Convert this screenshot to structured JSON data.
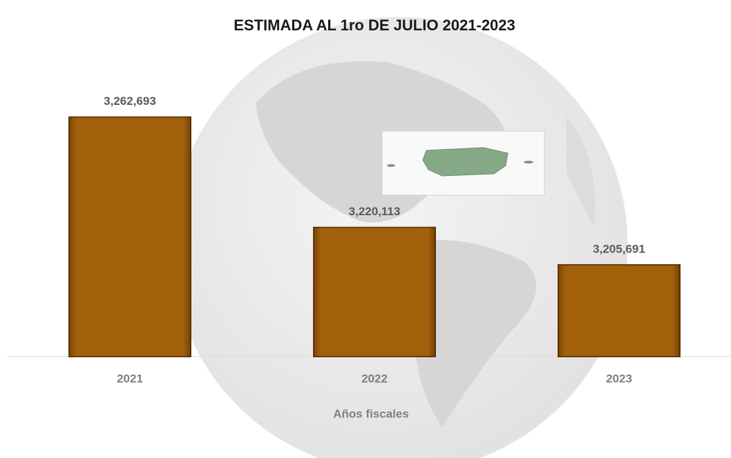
{
  "chart_data": {
    "type": "bar",
    "title": "ESTIMADA AL 1ro DE JULIO 2021-2023",
    "x_label": "Años fiscales",
    "categories": [
      "2021",
      "2022",
      "2023"
    ],
    "values": [
      3262693,
      3220113,
      3205691
    ],
    "value_labels": [
      "3,262,693",
      "3,220,113",
      "3,205,691"
    ],
    "color": "#a3600b",
    "ylim": [
      3170300,
      3297200
    ]
  }
}
